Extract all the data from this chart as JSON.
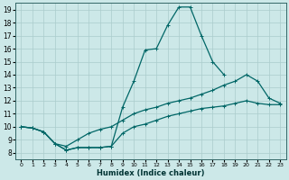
{
  "background_color": "#cce8e8",
  "grid_color": "#aacccc",
  "line_color": "#006666",
  "xlabel": "Humidex (Indice chaleur)",
  "xlim": [
    -0.5,
    23.5
  ],
  "ylim": [
    7.5,
    19.5
  ],
  "yticks": [
    8,
    9,
    10,
    11,
    12,
    13,
    14,
    15,
    16,
    17,
    18,
    19
  ],
  "xticks": [
    0,
    1,
    2,
    3,
    4,
    5,
    6,
    7,
    8,
    9,
    10,
    11,
    12,
    13,
    14,
    15,
    16,
    17,
    18,
    19,
    20,
    21,
    22,
    23
  ],
  "line1_x": [
    0,
    1,
    2,
    3,
    4,
    5,
    6,
    7,
    8,
    9,
    10,
    11,
    12,
    13,
    14,
    15,
    16,
    17,
    18,
    19,
    20,
    21,
    22,
    23
  ],
  "line1_y": [
    10.0,
    9.9,
    9.6,
    8.7,
    8.2,
    8.4,
    8.4,
    8.4,
    8.5,
    9.5,
    10.0,
    10.2,
    10.5,
    10.8,
    11.0,
    11.2,
    11.4,
    11.5,
    11.6,
    11.8,
    12.0,
    11.8,
    11.7,
    11.7
  ],
  "line2_x": [
    0,
    1,
    2,
    3,
    4,
    5,
    6,
    7,
    8,
    9,
    10,
    11,
    12,
    13,
    14,
    15,
    16,
    17,
    18
  ],
  "line2_y": [
    10.0,
    9.9,
    9.6,
    8.7,
    8.2,
    8.4,
    8.4,
    8.4,
    8.5,
    11.5,
    13.5,
    15.9,
    16.0,
    17.8,
    19.2,
    19.2,
    17.0,
    15.0,
    14.0
  ],
  "line3_x": [
    0,
    1,
    2,
    3,
    4,
    5,
    6,
    7,
    8,
    9,
    10,
    11,
    12,
    13,
    14,
    15,
    16,
    17,
    18,
    19,
    20,
    21,
    22,
    23
  ],
  "line3_y": [
    10.0,
    9.9,
    9.6,
    8.7,
    8.5,
    9.0,
    9.5,
    9.8,
    10.0,
    10.5,
    11.0,
    11.3,
    11.5,
    11.8,
    12.0,
    12.2,
    12.5,
    12.8,
    13.2,
    13.5,
    14.0,
    13.5,
    12.2,
    11.8
  ]
}
